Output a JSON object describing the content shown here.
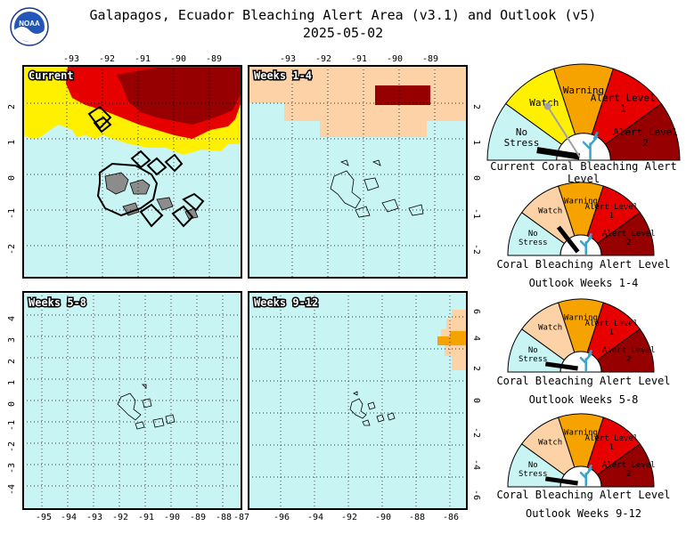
{
  "header": {
    "title": "Galapagos, Ecuador Bleaching Alert Area (v3.1) and Outlook (v5)",
    "date": "2025-05-02",
    "logo_text": "NOAA"
  },
  "colors": {
    "no_stress": "#c8f4f4",
    "watch": "#fff000",
    "watch_outlook": "#fcd2a6",
    "warning": "#f6a300",
    "alert1": "#e60000",
    "alert2": "#960000",
    "land": "#8c8c8c"
  },
  "legend_levels": [
    "No Stress",
    "Watch",
    "Warning",
    "Alert Level 1",
    "Alert Level 2"
  ],
  "panels": [
    {
      "label": "Current",
      "x_ticks": [
        "-93",
        "-92",
        "-91",
        "-90",
        "-89"
      ],
      "y_ticks": [
        "2",
        "1",
        "0",
        "-1",
        "-2"
      ],
      "tick_side": "top-left"
    },
    {
      "label": "Weeks 1-4",
      "x_ticks": [
        "-93",
        "-92",
        "-91",
        "-90",
        "-89"
      ],
      "y_ticks": [
        "2",
        "1",
        "0",
        "-1",
        "-2"
      ],
      "tick_side": "top-right"
    },
    {
      "label": "Weeks 5-8",
      "x_ticks": [
        "-95",
        "-94",
        "-93",
        "-92",
        "-91",
        "-90",
        "-89",
        "-88",
        "-87"
      ],
      "y_ticks": [
        "4",
        "3",
        "2",
        "1",
        "0",
        "-1",
        "-2",
        "-3",
        "-4"
      ],
      "tick_side": "bottom-left"
    },
    {
      "label": "Weeks 9-12",
      "x_ticks": [
        "-96",
        "-94",
        "-92",
        "-90",
        "-88",
        "-86"
      ],
      "y_ticks": [
        "6",
        "4",
        "2",
        "0",
        "-2",
        "-4",
        "-6"
      ],
      "tick_side": "bottom-right"
    }
  ],
  "gauges": [
    {
      "caption_line1": "Current Coral Bleaching Alert Level",
      "caption_line2": "",
      "current_level": "No Stress",
      "watch_label": "Watch"
    },
    {
      "caption_line1": "Coral Bleaching Alert Level",
      "caption_line2": "Outlook Weeks 1-4",
      "current_level": "Watch",
      "watch_label": "Watch"
    },
    {
      "caption_line1": "Coral Bleaching Alert Level",
      "caption_line2": "Outlook Weeks 5-8",
      "current_level": "No Stress",
      "watch_label": "Watch"
    },
    {
      "caption_line1": "Coral Bleaching Alert Level",
      "caption_line2": "Outlook Weeks 9-12",
      "current_level": "No Stress",
      "watch_label": "Watch"
    }
  ]
}
